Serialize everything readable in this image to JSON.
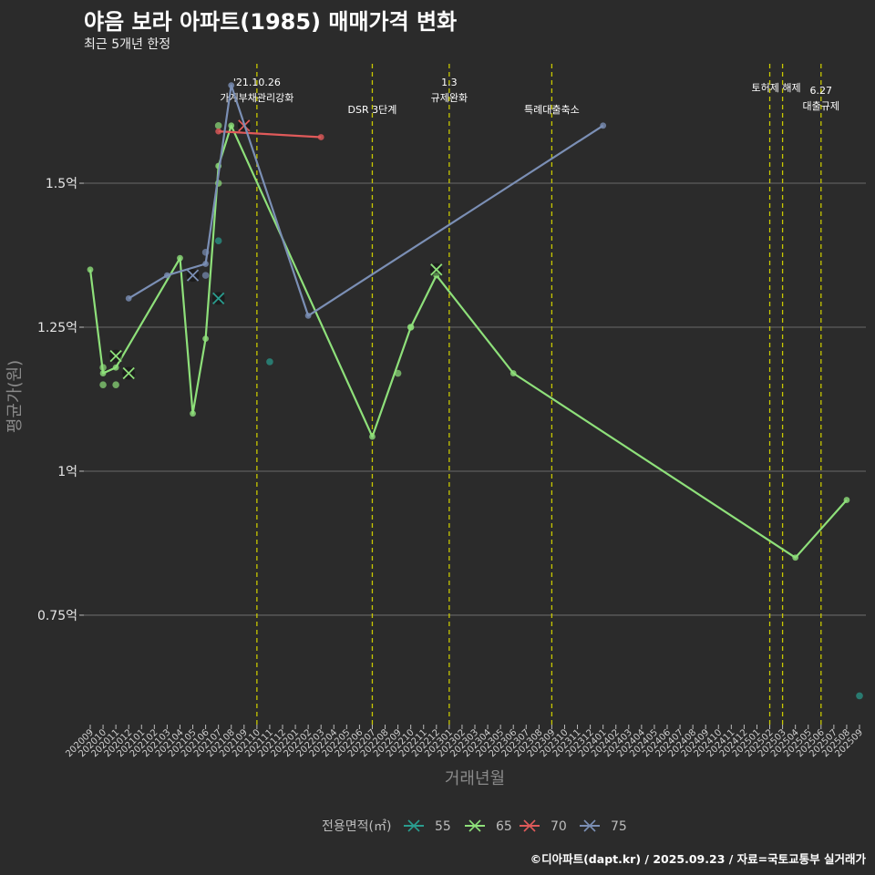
{
  "header": {
    "title": "야음 보라 아파트(1985) 매매가격 변화",
    "subtitle": "최근 5개년 한정"
  },
  "caption": "©디아파트(dapt.kr) / 2025.09.23 / 자료=국토교통부 실거래가",
  "colors": {
    "background": "#2b2b2b",
    "grid": "#5e5e5e",
    "policy_line": "#c8c800",
    "s55": "#2a9d8f",
    "s65": "#8ee07a",
    "s70": "#e05a5a",
    "s75": "#7b8fb5"
  },
  "chart_data": {
    "type": "line",
    "title": "야음 보라 아파트(1985) 매매가격 변화",
    "subtitle": "최근 5개년 한정",
    "xlabel": "거래년월",
    "ylabel": "평균가(원)",
    "ylim": [
      0.56,
      1.72
    ],
    "y_ticks": [
      {
        "value": 0.75,
        "label": "0.75억"
      },
      {
        "value": 1.0,
        "label": "1억"
      },
      {
        "value": 1.25,
        "label": "1.25억"
      },
      {
        "value": 1.5,
        "label": "1.5억"
      }
    ],
    "categories": [
      "202009",
      "202010",
      "202011",
      "202012",
      "202101",
      "202102",
      "202103",
      "202104",
      "202105",
      "202106",
      "202107",
      "202108",
      "202109",
      "202110",
      "202111",
      "202112",
      "202201",
      "202202",
      "202203",
      "202204",
      "202205",
      "202206",
      "202207",
      "202208",
      "202209",
      "202210",
      "202211",
      "202212",
      "202301",
      "202302",
      "202303",
      "202304",
      "202305",
      "202306",
      "202307",
      "202308",
      "202309",
      "202310",
      "202311",
      "202312",
      "202401",
      "202402",
      "202403",
      "202404",
      "202405",
      "202406",
      "202407",
      "202408",
      "202409",
      "202410",
      "202411",
      "202412",
      "202501",
      "202502",
      "202503",
      "202504",
      "202505",
      "202506",
      "202507",
      "202508",
      "202509"
    ],
    "legend_title": "전용면적(㎡)",
    "legend_position": "bottom",
    "series": [
      {
        "name": "55",
        "color": "#2a9d8f",
        "line": [],
        "points": [
          [
            "202107",
            1.4
          ],
          [
            "202111",
            1.19
          ],
          [
            "202509",
            0.61
          ]
        ],
        "cross": [
          [
            "202107",
            1.3
          ]
        ]
      },
      {
        "name": "65",
        "color": "#8ee07a",
        "line": [
          [
            "202009",
            1.35
          ],
          [
            "202010",
            1.17
          ],
          [
            "202011",
            1.18
          ],
          [
            "202104",
            1.37
          ],
          [
            "202105",
            1.1
          ],
          [
            "202106",
            1.23
          ],
          [
            "202107",
            1.53
          ],
          [
            "202108",
            1.6
          ],
          [
            "202207",
            1.06
          ],
          [
            "202210",
            1.25
          ],
          [
            "202212",
            1.34
          ],
          [
            "202306",
            1.17
          ],
          [
            "202504",
            0.85
          ],
          [
            "202508",
            0.95
          ]
        ],
        "points": [
          [
            "202010",
            1.18
          ],
          [
            "202010",
            1.15
          ],
          [
            "202011",
            1.15
          ],
          [
            "202107",
            1.5
          ],
          [
            "202107",
            1.6
          ],
          [
            "202209",
            1.17
          ],
          [
            "202210",
            1.25
          ]
        ],
        "cross": [
          [
            "202011",
            1.2
          ],
          [
            "202012",
            1.17
          ],
          [
            "202212",
            1.35
          ]
        ]
      },
      {
        "name": "70",
        "color": "#e05a5a",
        "line": [
          [
            "202107",
            1.59
          ],
          [
            "202203",
            1.58
          ]
        ],
        "points": [],
        "cross": [
          [
            "202109",
            1.6
          ]
        ]
      },
      {
        "name": "75",
        "color": "#7b8fb5",
        "line": [
          [
            "202012",
            1.3
          ],
          [
            "202103",
            1.34
          ],
          [
            "202106",
            1.36
          ],
          [
            "202108",
            1.67
          ],
          [
            "202202",
            1.27
          ],
          [
            "202401",
            1.6
          ]
        ],
        "points": [
          [
            "202106",
            1.38
          ],
          [
            "202106",
            1.34
          ]
        ],
        "cross": [
          [
            "202105",
            1.34
          ]
        ]
      }
    ],
    "policy_events": [
      {
        "month": "202110",
        "lines": [
          "'21.10.26",
          "가계부채관리강화"
        ],
        "level": 0
      },
      {
        "month": "202207",
        "lines": [
          "DSR 3단계"
        ],
        "level": 2
      },
      {
        "month": "202301",
        "lines": [
          "1.3",
          "규제완화"
        ],
        "level": 0
      },
      {
        "month": "202309",
        "lines": [
          "특례대출축소"
        ],
        "level": 2
      },
      {
        "month": "202502",
        "lines": [
          "토허제 해제"
        ],
        "level": 1,
        "anchor_month": "202503"
      },
      {
        "month": "202503",
        "lines": [],
        "level": 0
      },
      {
        "month": "202506",
        "lines": [
          "6.27",
          "대출규제"
        ],
        "level": 1
      }
    ]
  }
}
